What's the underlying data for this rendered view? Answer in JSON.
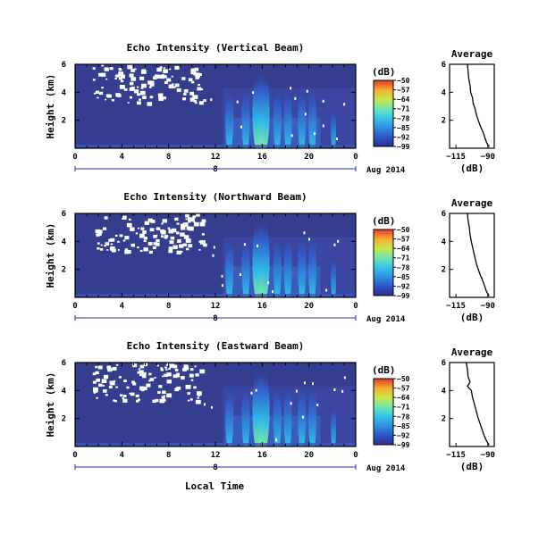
{
  "figure": {
    "xlabel": "Local Time",
    "colorbar_unit": "(dB)",
    "colorbar_ticks": [
      "-50",
      "-57",
      "-64",
      "-71",
      "-78",
      "-85",
      "-92",
      "-99"
    ],
    "date_marker": "8",
    "date_label": "Aug 2014",
    "avg_title": "Average",
    "avg_xlabel": "(dB)",
    "panel_ylabel": "Height (km)"
  },
  "chart_data": [
    {
      "type": "heatmap",
      "title": "Echo Intensity (Vertical Beam)",
      "ylabel": "Height (km)",
      "xlabel": "",
      "x_ticks": [
        "0",
        "4",
        "8",
        "12",
        "16",
        "20",
        "0"
      ],
      "x_tick_values": [
        0,
        4,
        8,
        12,
        16,
        20,
        24
      ],
      "xlim": [
        0,
        24
      ],
      "y_ticks": [
        "2",
        "4",
        "6"
      ],
      "y_tick_values": [
        2,
        4,
        6
      ],
      "ylim": [
        0,
        6
      ],
      "color_range": [
        -99,
        -50
      ],
      "colorbar_unit": "(dB)",
      "colorbar_ticks": [
        -50,
        -57,
        -64,
        -71,
        -78,
        -85,
        -92,
        -99
      ],
      "description_bands": [
        {
          "time": 13.2,
          "intensity": "moderate"
        },
        {
          "time": 14.6,
          "intensity": "moderate"
        },
        {
          "time": 15.7,
          "intensity": "high"
        },
        {
          "time": 16.1,
          "intensity": "high"
        },
        {
          "time": 17.3,
          "intensity": "moderate"
        },
        {
          "time": 18.2,
          "intensity": "moderate"
        },
        {
          "time": 19.4,
          "intensity": "moderate"
        },
        {
          "time": 20.3,
          "intensity": "moderate"
        },
        {
          "time": 22.1,
          "intensity": "low"
        }
      ]
    },
    {
      "type": "line",
      "title": "Average",
      "xlabel": "(dB)",
      "x_ticks": [
        "-115",
        "-90"
      ],
      "x_tick_values": [
        -115,
        -90
      ],
      "xlim": [
        -120,
        -85
      ],
      "y_ticks": [
        "2",
        "4",
        "6"
      ],
      "y_tick_values": [
        2,
        4,
        6
      ],
      "ylim": [
        0,
        6
      ],
      "x": [
        -106,
        -105.5,
        -105,
        -104,
        -103.5,
        -102,
        -101.5,
        -100,
        -99,
        -97.5,
        -96,
        -94,
        -92.5,
        -91,
        -89
      ],
      "y": [
        6.0,
        5.5,
        5.0,
        4.5,
        4.0,
        3.6,
        3.2,
        2.8,
        2.4,
        2.0,
        1.6,
        1.2,
        0.8,
        0.4,
        0.1
      ]
    },
    {
      "type": "heatmap",
      "title": "Echo Intensity (Northward Beam)",
      "ylabel": "Height (km)",
      "xlabel": "",
      "x_ticks": [
        "0",
        "4",
        "8",
        "12",
        "16",
        "20",
        "0"
      ],
      "x_tick_values": [
        0,
        4,
        8,
        12,
        16,
        20,
        24
      ],
      "xlim": [
        0,
        24
      ],
      "y_ticks": [
        "2",
        "4",
        "6"
      ],
      "y_tick_values": [
        2,
        4,
        6
      ],
      "ylim": [
        0,
        6
      ],
      "color_range": [
        -99,
        -50
      ],
      "colorbar_unit": "(dB)",
      "colorbar_ticks": [
        -50,
        -57,
        -64,
        -71,
        -78,
        -85,
        -92,
        -99
      ],
      "description_bands": [
        {
          "time": 13.2,
          "intensity": "moderate"
        },
        {
          "time": 14.6,
          "intensity": "moderate"
        },
        {
          "time": 15.7,
          "intensity": "high"
        },
        {
          "time": 16.1,
          "intensity": "high"
        },
        {
          "time": 17.3,
          "intensity": "moderate"
        },
        {
          "time": 18.2,
          "intensity": "moderate"
        },
        {
          "time": 19.4,
          "intensity": "moderate"
        },
        {
          "time": 20.3,
          "intensity": "moderate"
        },
        {
          "time": 22.1,
          "intensity": "low"
        }
      ]
    },
    {
      "type": "line",
      "title": "Average",
      "xlabel": "(dB)",
      "x_ticks": [
        "-115",
        "-90"
      ],
      "x_tick_values": [
        -115,
        -90
      ],
      "xlim": [
        -120,
        -85
      ],
      "y_ticks": [
        "2",
        "4",
        "6"
      ],
      "y_tick_values": [
        2,
        4,
        6
      ],
      "ylim": [
        0,
        6
      ],
      "x": [
        -106,
        -105.5,
        -104.5,
        -104,
        -103,
        -102,
        -101,
        -100,
        -99,
        -97.5,
        -96,
        -94,
        -92.5,
        -91,
        -89
      ],
      "y": [
        6.0,
        5.5,
        5.0,
        4.5,
        4.0,
        3.6,
        3.2,
        2.8,
        2.4,
        2.0,
        1.6,
        1.2,
        0.8,
        0.4,
        0.1
      ]
    },
    {
      "type": "heatmap",
      "title": "Echo Intensity (Eastward Beam)",
      "ylabel": "Height (km)",
      "xlabel": "Local Time",
      "x_ticks": [
        "0",
        "4",
        "8",
        "12",
        "16",
        "20",
        "0"
      ],
      "x_tick_values": [
        0,
        4,
        8,
        12,
        16,
        20,
        24
      ],
      "xlim": [
        0,
        24
      ],
      "y_ticks": [
        "2",
        "4",
        "6"
      ],
      "y_tick_values": [
        2,
        4,
        6
      ],
      "ylim": [
        0,
        6
      ],
      "color_range": [
        -99,
        -50
      ],
      "colorbar_unit": "(dB)",
      "colorbar_ticks": [
        -50,
        -57,
        -64,
        -71,
        -78,
        -85,
        -92,
        -99
      ],
      "description_bands": [
        {
          "time": 13.2,
          "intensity": "moderate"
        },
        {
          "time": 14.6,
          "intensity": "moderate"
        },
        {
          "time": 15.7,
          "intensity": "high"
        },
        {
          "time": 16.1,
          "intensity": "high"
        },
        {
          "time": 17.3,
          "intensity": "moderate"
        },
        {
          "time": 18.2,
          "intensity": "moderate"
        },
        {
          "time": 19.4,
          "intensity": "moderate"
        },
        {
          "time": 20.3,
          "intensity": "moderate"
        },
        {
          "time": 22.1,
          "intensity": "low"
        }
      ]
    },
    {
      "type": "line",
      "title": "Average",
      "xlabel": "(dB)",
      "x_ticks": [
        "-115",
        "-90"
      ],
      "x_tick_values": [
        -115,
        -90
      ],
      "xlim": [
        -120,
        -85
      ],
      "y_ticks": [
        "2",
        "4",
        "6"
      ],
      "y_tick_values": [
        2,
        4,
        6
      ],
      "ylim": [
        0,
        6
      ],
      "x": [
        -107,
        -106,
        -105.5,
        -104,
        -106,
        -103,
        -102,
        -100.5,
        -99,
        -97.5,
        -96,
        -94.5,
        -93,
        -91,
        -89
      ],
      "y": [
        6.0,
        5.5,
        5.0,
        4.6,
        4.3,
        4.0,
        3.5,
        3.0,
        2.5,
        2.0,
        1.6,
        1.2,
        0.8,
        0.4,
        0.1
      ]
    }
  ]
}
